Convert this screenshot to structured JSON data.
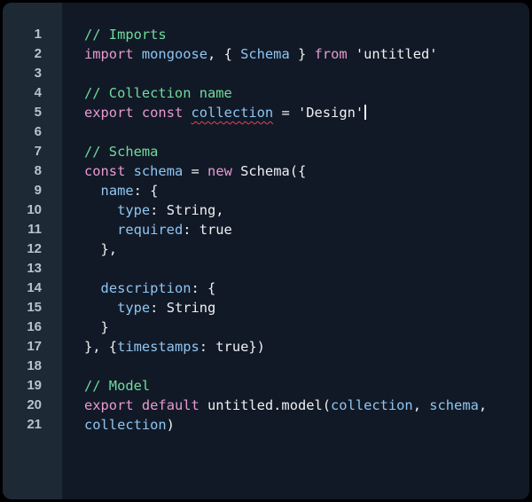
{
  "editor": {
    "colors": {
      "background": "#121926",
      "gutter": "#1e2936",
      "comment": "#6fdc9e",
      "keyword": "#e79bd2",
      "identifier": "#8ec6f2",
      "text": "#eef0f2",
      "error_squiggle": "#e0445a"
    },
    "lines": [
      {
        "number": "1",
        "tokens": [
          {
            "t": "// Imports",
            "c": "comment"
          }
        ]
      },
      {
        "number": "2",
        "tokens": [
          {
            "t": "import",
            "c": "keyword"
          },
          {
            "t": " "
          },
          {
            "t": "mongoose",
            "c": "ident"
          },
          {
            "t": ", { "
          },
          {
            "t": "Schema",
            "c": "ident"
          },
          {
            "t": " } "
          },
          {
            "t": "from",
            "c": "keyword"
          },
          {
            "t": " 'untitled'"
          }
        ]
      },
      {
        "number": "3",
        "tokens": []
      },
      {
        "number": "4",
        "tokens": [
          {
            "t": "// Collection name",
            "c": "comment"
          }
        ]
      },
      {
        "number": "5",
        "tokens": [
          {
            "t": "export",
            "c": "keyword"
          },
          {
            "t": " "
          },
          {
            "t": "const",
            "c": "keyword"
          },
          {
            "t": " "
          },
          {
            "t": "collection",
            "c": "ident",
            "squiggle": true
          },
          {
            "t": " = 'Design'"
          }
        ],
        "cursor": true
      },
      {
        "number": "6",
        "tokens": []
      },
      {
        "number": "7",
        "tokens": [
          {
            "t": "// Schema",
            "c": "comment"
          }
        ]
      },
      {
        "number": "8",
        "tokens": [
          {
            "t": "const",
            "c": "keyword"
          },
          {
            "t": " "
          },
          {
            "t": "schema",
            "c": "ident"
          },
          {
            "t": " = "
          },
          {
            "t": "new",
            "c": "keyword"
          },
          {
            "t": " Schema({"
          }
        ]
      },
      {
        "number": "9",
        "tokens": [
          {
            "t": "  "
          },
          {
            "t": "name",
            "c": "ident"
          },
          {
            "t": ": {"
          }
        ]
      },
      {
        "number": "10",
        "tokens": [
          {
            "t": "    "
          },
          {
            "t": "type",
            "c": "ident"
          },
          {
            "t": ": String,"
          }
        ]
      },
      {
        "number": "11",
        "tokens": [
          {
            "t": "    "
          },
          {
            "t": "required",
            "c": "ident"
          },
          {
            "t": ": true"
          }
        ]
      },
      {
        "number": "12",
        "tokens": [
          {
            "t": "  },"
          }
        ]
      },
      {
        "number": "13",
        "tokens": []
      },
      {
        "number": "14",
        "tokens": [
          {
            "t": "  "
          },
          {
            "t": "description",
            "c": "ident"
          },
          {
            "t": ": {"
          }
        ]
      },
      {
        "number": "15",
        "tokens": [
          {
            "t": "    "
          },
          {
            "t": "type",
            "c": "ident"
          },
          {
            "t": ": String"
          }
        ]
      },
      {
        "number": "16",
        "tokens": [
          {
            "t": "  }"
          }
        ]
      },
      {
        "number": "17",
        "tokens": [
          {
            "t": "}, {"
          },
          {
            "t": "timestamps",
            "c": "ident"
          },
          {
            "t": ": true})"
          }
        ]
      },
      {
        "number": "18",
        "tokens": []
      },
      {
        "number": "19",
        "tokens": [
          {
            "t": "// Model",
            "c": "comment"
          }
        ]
      },
      {
        "number": "20",
        "tokens": [
          {
            "t": "export",
            "c": "keyword"
          },
          {
            "t": " "
          },
          {
            "t": "default",
            "c": "keyword"
          },
          {
            "t": " untitled.model("
          },
          {
            "t": "collection",
            "c": "ident"
          },
          {
            "t": ", "
          },
          {
            "t": "schema",
            "c": "ident"
          },
          {
            "t": ","
          }
        ]
      },
      {
        "number": "21",
        "tokens": [
          {
            "t": "collection",
            "c": "ident"
          },
          {
            "t": ")"
          }
        ]
      }
    ]
  }
}
